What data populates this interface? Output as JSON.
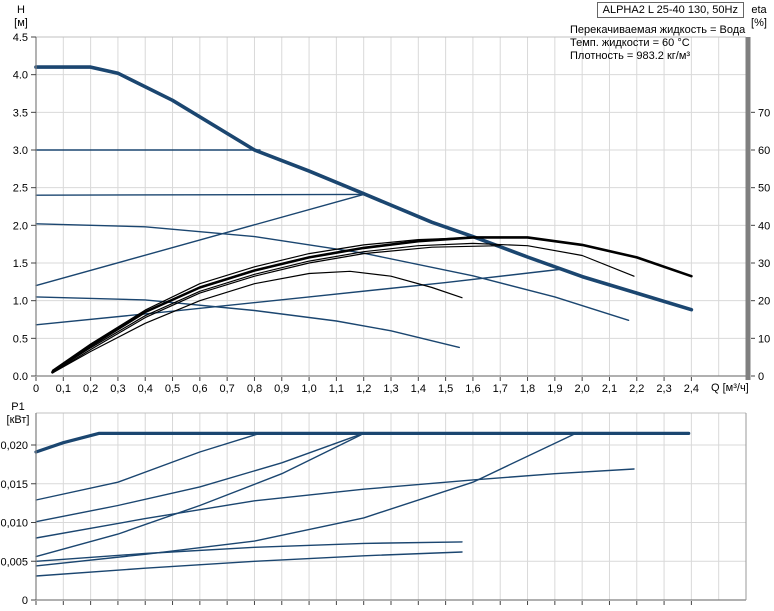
{
  "title_box": {
    "text": "ALPHA2 L 25-40 130, 50Hz"
  },
  "info_lines": [
    "Перекачиваемая жидкость = Вода",
    "Темп. жидкости = 60 °C",
    "Плотность = 983.2 кг/м³"
  ],
  "axis_labels": {
    "head_symbol": "H",
    "head_unit": "[м]",
    "eta_symbol": "eta",
    "eta_unit": "[%]",
    "power_symbol": "P1",
    "power_unit": "[кВт]",
    "flow": "Q [м³/ч]"
  },
  "colors": {
    "curve_blue": "#1b4670",
    "curve_black": "#000000",
    "grid": "#d9d9d9",
    "frame": "#808080",
    "frame_light": "#c0c0c0",
    "spine": "#7f7f7f",
    "tick": "#444444",
    "text": "#000000",
    "bg": "#ffffff"
  },
  "chart_data": [
    {
      "type": "line",
      "title": "ALPHA2 L 25-40 130, 50Hz",
      "xlabel": "Q [м³/ч]",
      "ylabel": "H [м]",
      "y2label": "eta [%]",
      "xlim": [
        0,
        2.6
      ],
      "ylim": [
        0,
        4.5
      ],
      "y2lim": [
        0,
        90
      ],
      "grid": true,
      "legend": "none",
      "x_ticks": {
        "values": [
          0,
          0.1,
          0.2,
          0.3,
          0.4,
          0.5,
          0.6,
          0.7,
          0.8,
          0.9,
          1.0,
          1.1,
          1.2,
          1.3,
          1.4,
          1.5,
          1.6,
          1.7,
          1.8,
          1.9,
          2.0,
          2.1,
          2.2,
          2.3,
          2.4
        ],
        "labels": [
          "0",
          "0,1",
          "0,2",
          "0,3",
          "0,4",
          "0,5",
          "0,6",
          "0,7",
          "0,8",
          "0,9",
          "1,0",
          "1,1",
          "1,2",
          "1,3",
          "1,4",
          "1,5",
          "1,6",
          "1,7",
          "1,8",
          "1,9",
          "2,0",
          "2,1",
          "2,2",
          "2,3",
          "2,4"
        ]
      },
      "grid_extra_x": [
        2.5
      ],
      "y_ticks": {
        "values": [
          0,
          0.5,
          1.0,
          1.5,
          2.0,
          2.5,
          3.0,
          3.5,
          4.0,
          4.5
        ],
        "labels": [
          "0.0",
          "0.5",
          "1.0",
          "1.5",
          "2.0",
          "2.5",
          "3.0",
          "3.5",
          "4.0",
          "4.5"
        ]
      },
      "y2_ticks": {
        "values": [
          0,
          10,
          20,
          30,
          40,
          50,
          60,
          70
        ],
        "labels": [
          "0",
          "10",
          "20",
          "30",
          "40",
          "50",
          "60",
          "70"
        ]
      },
      "series": [
        {
          "name": "speed-iii-max",
          "axis": "y",
          "color": "blue",
          "width": 3.6,
          "points": [
            [
              0,
              4.1
            ],
            [
              0.2,
              4.1
            ],
            [
              0.3,
              4.02
            ],
            [
              0.5,
              3.66
            ],
            [
              0.8,
              3.0
            ],
            [
              1.0,
              2.72
            ],
            [
              1.2,
              2.42
            ],
            [
              1.45,
              2.04
            ],
            [
              1.6,
              1.85
            ],
            [
              1.8,
              1.58
            ],
            [
              2.0,
              1.32
            ],
            [
              2.2,
              1.1
            ],
            [
              2.4,
              0.88
            ]
          ]
        },
        {
          "name": "const-pressure-3.0",
          "axis": "y",
          "color": "blue",
          "width": 1.4,
          "points": [
            [
              0,
              3.0
            ],
            [
              0.82,
              3.0
            ]
          ]
        },
        {
          "name": "const-pressure-2.4",
          "axis": "y",
          "color": "blue",
          "width": 1.4,
          "points": [
            [
              0,
              2.4
            ],
            [
              1.2,
              2.41
            ]
          ]
        },
        {
          "name": "prop-pressure-2",
          "axis": "y",
          "color": "blue",
          "width": 1.4,
          "points": [
            [
              0,
              1.2
            ],
            [
              1.2,
              2.41
            ]
          ]
        },
        {
          "name": "prop-pressure-1",
          "axis": "y",
          "color": "blue",
          "width": 1.4,
          "points": [
            [
              0,
              0.68
            ],
            [
              0.5,
              0.86
            ],
            [
              1.0,
              1.05
            ],
            [
              1.5,
              1.24
            ],
            [
              1.93,
              1.42
            ]
          ]
        },
        {
          "name": "speed-ii",
          "axis": "y",
          "color": "blue",
          "width": 1.4,
          "points": [
            [
              0,
              2.02
            ],
            [
              0.4,
              1.98
            ],
            [
              0.8,
              1.85
            ],
            [
              1.2,
              1.63
            ],
            [
              1.6,
              1.33
            ],
            [
              1.9,
              1.05
            ],
            [
              2.17,
              0.74
            ]
          ]
        },
        {
          "name": "speed-i",
          "axis": "y",
          "color": "blue",
          "width": 1.4,
          "points": [
            [
              0,
              1.05
            ],
            [
              0.4,
              1.01
            ],
            [
              0.8,
              0.87
            ],
            [
              1.1,
              0.73
            ],
            [
              1.3,
              0.6
            ],
            [
              1.55,
              0.38
            ]
          ]
        },
        {
          "name": "eta-speed-iii",
          "axis": "y2",
          "color": "black",
          "width": 2.6,
          "points": [
            [
              0.06,
              1
            ],
            [
              0.2,
              8
            ],
            [
              0.4,
              17
            ],
            [
              0.6,
              23.5
            ],
            [
              0.8,
              28
            ],
            [
              1.0,
              31.5
            ],
            [
              1.2,
              34
            ],
            [
              1.4,
              35.8
            ],
            [
              1.6,
              36.8
            ],
            [
              1.8,
              36.8
            ],
            [
              2.0,
              34.8
            ],
            [
              2.2,
              31.5
            ],
            [
              2.4,
              26.5
            ]
          ]
        },
        {
          "name": "eta-speed-ii",
          "axis": "y2",
          "color": "black",
          "width": 1.2,
          "points": [
            [
              0.06,
              1
            ],
            [
              0.2,
              7.5
            ],
            [
              0.4,
              16
            ],
            [
              0.6,
              22.5
            ],
            [
              0.8,
              27
            ],
            [
              1.0,
              30.5
            ],
            [
              1.2,
              33
            ],
            [
              1.4,
              34.6
            ],
            [
              1.6,
              35.2
            ],
            [
              1.8,
              34.6
            ],
            [
              2.0,
              32
            ],
            [
              2.19,
              26.5
            ]
          ]
        },
        {
          "name": "eta-bundle-a",
          "axis": "y2",
          "color": "black",
          "width": 1.2,
          "points": [
            [
              0.06,
              1.5
            ],
            [
              0.2,
              8.5
            ],
            [
              0.4,
              17.5
            ],
            [
              0.6,
              24.5
            ],
            [
              0.8,
              29
            ],
            [
              1.0,
              32.5
            ],
            [
              1.2,
              34.8
            ],
            [
              1.4,
              36.2
            ],
            [
              1.55,
              36.6
            ]
          ]
        },
        {
          "name": "eta-bundle-b",
          "axis": "y2",
          "color": "black",
          "width": 1.2,
          "points": [
            [
              0.06,
              0.8
            ],
            [
              0.2,
              7
            ],
            [
              0.4,
              15.5
            ],
            [
              0.6,
              22
            ],
            [
              0.8,
              26.5
            ],
            [
              1.0,
              30
            ],
            [
              1.2,
              32.5
            ],
            [
              1.45,
              34.2
            ],
            [
              1.7,
              34.6
            ]
          ]
        },
        {
          "name": "eta-speed-i",
          "axis": "y2",
          "color": "black",
          "width": 1.2,
          "points": [
            [
              0.06,
              0.8
            ],
            [
              0.2,
              6.5
            ],
            [
              0.4,
              14
            ],
            [
              0.6,
              20
            ],
            [
              0.8,
              24.5
            ],
            [
              1.0,
              27.2
            ],
            [
              1.15,
              27.8
            ],
            [
              1.3,
              26.5
            ],
            [
              1.45,
              23.5
            ],
            [
              1.56,
              20.8
            ]
          ]
        }
      ]
    },
    {
      "type": "line",
      "title": "",
      "xlabel": "Q [м³/ч]",
      "ylabel": "P1 [кВт]",
      "xlim": [
        0,
        2.6
      ],
      "ylim": [
        0,
        0.02413
      ],
      "grid": true,
      "legend": "none",
      "x_ticks": {
        "values": [
          0,
          0.1,
          0.2,
          0.3,
          0.4,
          0.5,
          0.6,
          0.7,
          0.8,
          0.9,
          1.0,
          1.1,
          1.2,
          1.3,
          1.4,
          1.5,
          1.6,
          1.7,
          1.8,
          1.9,
          2.0,
          2.1,
          2.2,
          2.3,
          2.4
        ],
        "labels": []
      },
      "grid_extra_x": [
        2.5
      ],
      "y_ticks": {
        "values": [
          0,
          0.005,
          0.01,
          0.015,
          0.02
        ],
        "labels": [
          "0",
          "0,005",
          "0,010",
          "0,015",
          "0,020"
        ]
      },
      "series": [
        {
          "name": "p1-speed-iii",
          "axis": "y",
          "color": "blue",
          "width": 3.2,
          "points": [
            [
              0,
              0.0191
            ],
            [
              0.1,
              0.0203
            ],
            [
              0.23,
              0.0215
            ],
            [
              2.39,
              0.0215
            ]
          ]
        },
        {
          "name": "p1-const-pressure-3.0",
          "axis": "y",
          "color": "blue",
          "width": 1.4,
          "points": [
            [
              0,
              0.0129
            ],
            [
              0.3,
              0.0152
            ],
            [
              0.6,
              0.0191
            ],
            [
              0.81,
              0.0214
            ]
          ]
        },
        {
          "name": "p1-const-pressure-2.4",
          "axis": "y",
          "color": "blue",
          "width": 1.4,
          "points": [
            [
              0,
              0.0101
            ],
            [
              0.3,
              0.0122
            ],
            [
              0.6,
              0.0146
            ],
            [
              0.9,
              0.0177
            ],
            [
              1.19,
              0.0214
            ]
          ]
        },
        {
          "name": "p1-prop-pressure-2",
          "axis": "y",
          "color": "blue",
          "width": 1.4,
          "points": [
            [
              0,
              0.0056
            ],
            [
              0.3,
              0.0085
            ],
            [
              0.6,
              0.0122
            ],
            [
              0.9,
              0.0163
            ],
            [
              1.19,
              0.0213
            ]
          ]
        },
        {
          "name": "p1-speed-ii",
          "axis": "y",
          "color": "blue",
          "width": 1.4,
          "points": [
            [
              0,
              0.008
            ],
            [
              0.4,
              0.0105
            ],
            [
              0.8,
              0.0128
            ],
            [
              1.2,
              0.0143
            ],
            [
              1.6,
              0.0155
            ],
            [
              1.9,
              0.0163
            ],
            [
              2.19,
              0.0169
            ]
          ]
        },
        {
          "name": "p1-prop-pressure-1",
          "axis": "y",
          "color": "blue",
          "width": 1.4,
          "points": [
            [
              0,
              0.0044
            ],
            [
              0.4,
              0.0059
            ],
            [
              0.8,
              0.0076
            ],
            [
              1.2,
              0.0106
            ],
            [
              1.6,
              0.0152
            ],
            [
              1.97,
              0.0214
            ]
          ]
        },
        {
          "name": "p1-speed-i",
          "axis": "y",
          "color": "blue",
          "width": 1.4,
          "points": [
            [
              0,
              0.005
            ],
            [
              0.4,
              0.006
            ],
            [
              0.8,
              0.0068
            ],
            [
              1.2,
              0.0073
            ],
            [
              1.56,
              0.0075
            ]
          ]
        },
        {
          "name": "p1-min",
          "axis": "y",
          "color": "blue",
          "width": 1.4,
          "points": [
            [
              0,
              0.0031
            ],
            [
              0.4,
              0.0041
            ],
            [
              0.8,
              0.005
            ],
            [
              1.2,
              0.0057
            ],
            [
              1.56,
              0.0062
            ]
          ]
        }
      ]
    }
  ]
}
